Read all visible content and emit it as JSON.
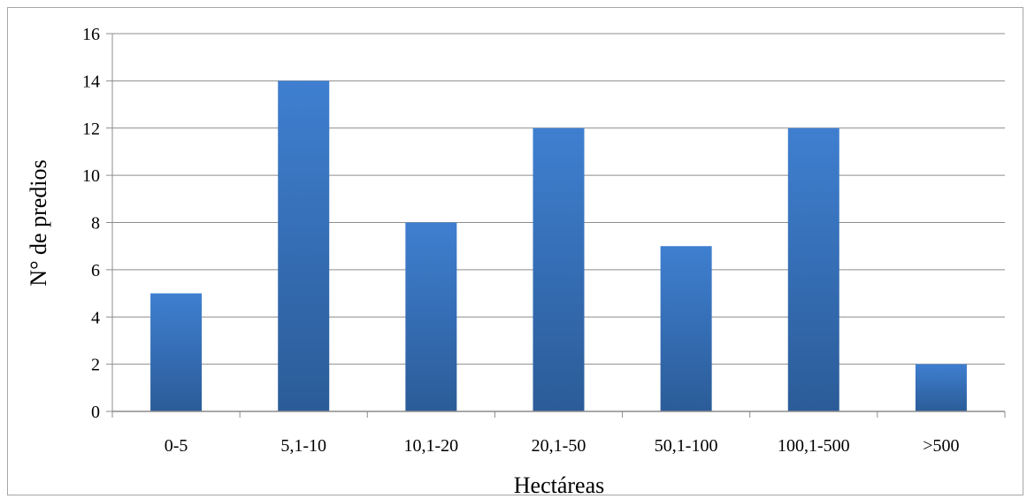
{
  "chart_data": {
    "type": "bar",
    "title": "",
    "xlabel": "Hectáreas",
    "ylabel": "N° de predios",
    "categories": [
      "0-5",
      "5,1-10",
      "10,1-20",
      "20,1-50",
      "50,1-100",
      "100,1-500",
      ">500"
    ],
    "values": [
      5,
      14,
      8,
      12,
      7,
      12,
      2
    ],
    "ylim": [
      0,
      16
    ],
    "yticks": [
      0,
      2,
      4,
      6,
      8,
      10,
      12,
      14,
      16
    ],
    "grid": true,
    "legend": "none",
    "colors": {
      "bar_top": "#3f7fd0",
      "bar_bottom": "#2b5c98",
      "grid": "#8c8c8c",
      "axis": "#8c8c8c"
    }
  }
}
